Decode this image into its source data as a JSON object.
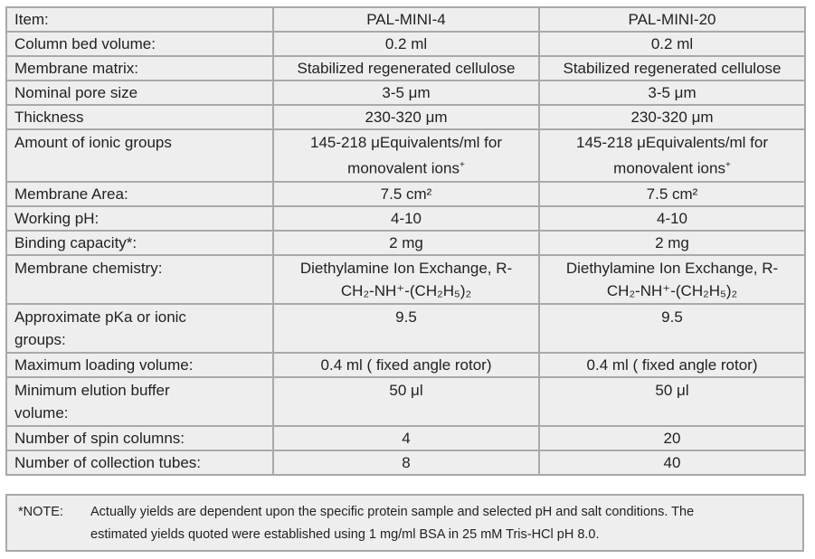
{
  "table": {
    "rows": [
      {
        "label": "Item:",
        "col1": "PAL-MINI-4",
        "col2": "PAL-MINI-20"
      },
      {
        "label": "Column bed volume:",
        "col1": "0.2 ml",
        "col2": "0.2 ml"
      },
      {
        "label": "Membrane matrix:",
        "col1": "Stabilized regenerated cellulose",
        "col2": "Stabilized regenerated cellulose"
      },
      {
        "label": "Nominal pore size",
        "col1": "3-5 μm",
        "col2": "3-5 μm"
      },
      {
        "label": "Thickness",
        "col1": "230-320 μm",
        "col2": "230-320 μm"
      },
      {
        "label": "Amount of ionic groups",
        "col1_line1": "145-218 μEquivalents/ml for",
        "col1_line2": "monovalent ions",
        "col1_sup": "+",
        "col2_line1": "145-218 μEquivalents/ml for",
        "col2_line2": "monovalent ions",
        "col2_sup": "+"
      },
      {
        "label": "Membrane Area:",
        "col1": "7.5 cm²",
        "col2": "7.5 cm²"
      },
      {
        "label": "Working pH:",
        "col1": "4-10",
        "col2": "4-10"
      },
      {
        "label": "Binding capacity*:",
        "col1": "2 mg",
        "col2": "2 mg"
      },
      {
        "label": "Membrane chemistry:",
        "col1_line1": "Diethylamine Ion Exchange, R-",
        "col1_line2": "CH₂-NH⁺-(CH₂H₅)₂",
        "col2_line1": "Diethylamine Ion Exchange, R-",
        "col2_line2": "CH₂-NH⁺-(CH₂H₅)₂"
      },
      {
        "label_line1": "Approximate pKa or ionic",
        "label_line2": "groups:",
        "col1": "9.5",
        "col2": "9.5"
      },
      {
        "label": "Maximum loading volume:",
        "col1": "0.4 ml ( fixed angle rotor)",
        "col2": "0.4 ml ( fixed angle rotor)"
      },
      {
        "label_line1": "Minimum elution buffer",
        "label_line2": "volume:",
        "col1": "50 μl",
        "col2": "50 μl"
      },
      {
        "label": "Number of spin columns:",
        "col1": "4",
        "col2": "20"
      },
      {
        "label": "Number of collection tubes:",
        "col1": "8",
        "col2": "40"
      }
    ]
  },
  "note": {
    "label": "*NOTE:",
    "line1": "Actually yields are dependent upon the specific protein sample and selected pH and salt conditions.  The",
    "line2": "estimated yields quoted were established using 1 mg/ml BSA in 25 mM Tris-HCl pH 8.0."
  }
}
